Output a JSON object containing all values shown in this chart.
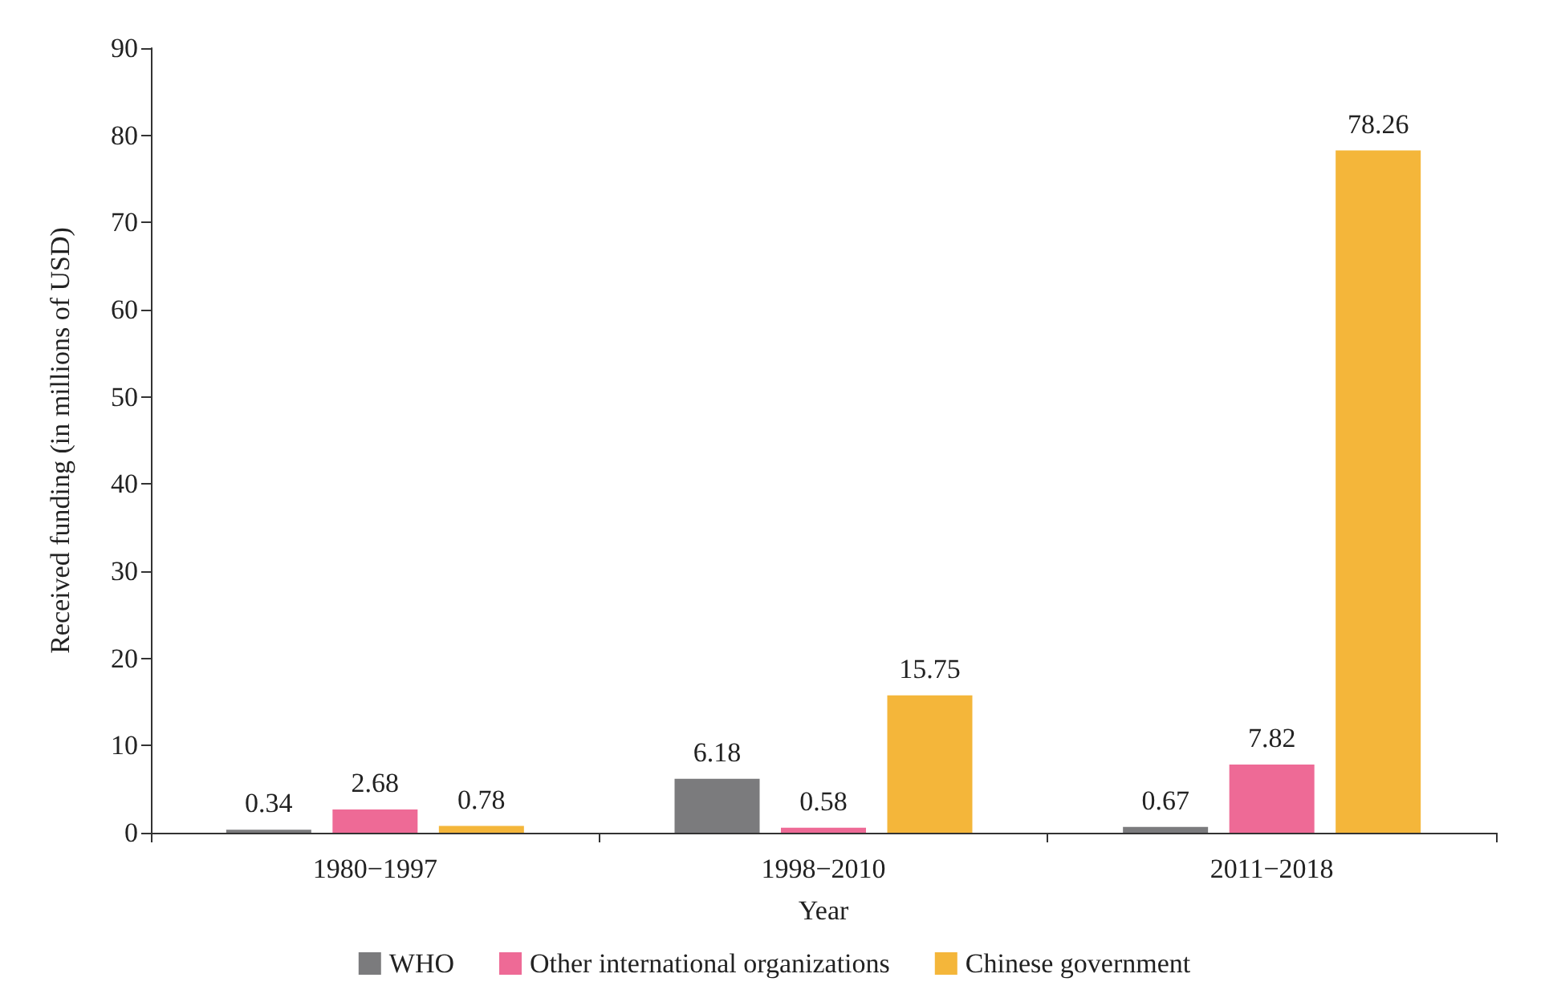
{
  "chart_data": {
    "type": "bar",
    "xlabel": "Year",
    "ylabel": "Received funding (in millions of USD)",
    "categories": [
      "1980−1997",
      "1998−2010",
      "2011−2018"
    ],
    "series": [
      {
        "name": "WHO",
        "color": "#7b7b7d",
        "values": [
          0.34,
          6.18,
          0.67
        ]
      },
      {
        "name": "Other international organizations",
        "color": "#ee6a96",
        "values": [
          2.68,
          0.58,
          7.82
        ]
      },
      {
        "name": "Chinese government",
        "color": "#f4b63a",
        "values": [
          0.78,
          15.75,
          78.26
        ]
      }
    ],
    "ylim": [
      0,
      90
    ],
    "yticks": [
      0,
      10,
      20,
      30,
      40,
      50,
      60,
      70,
      80,
      90
    ],
    "grid": false,
    "legend": "bottom",
    "data_labels": true
  }
}
